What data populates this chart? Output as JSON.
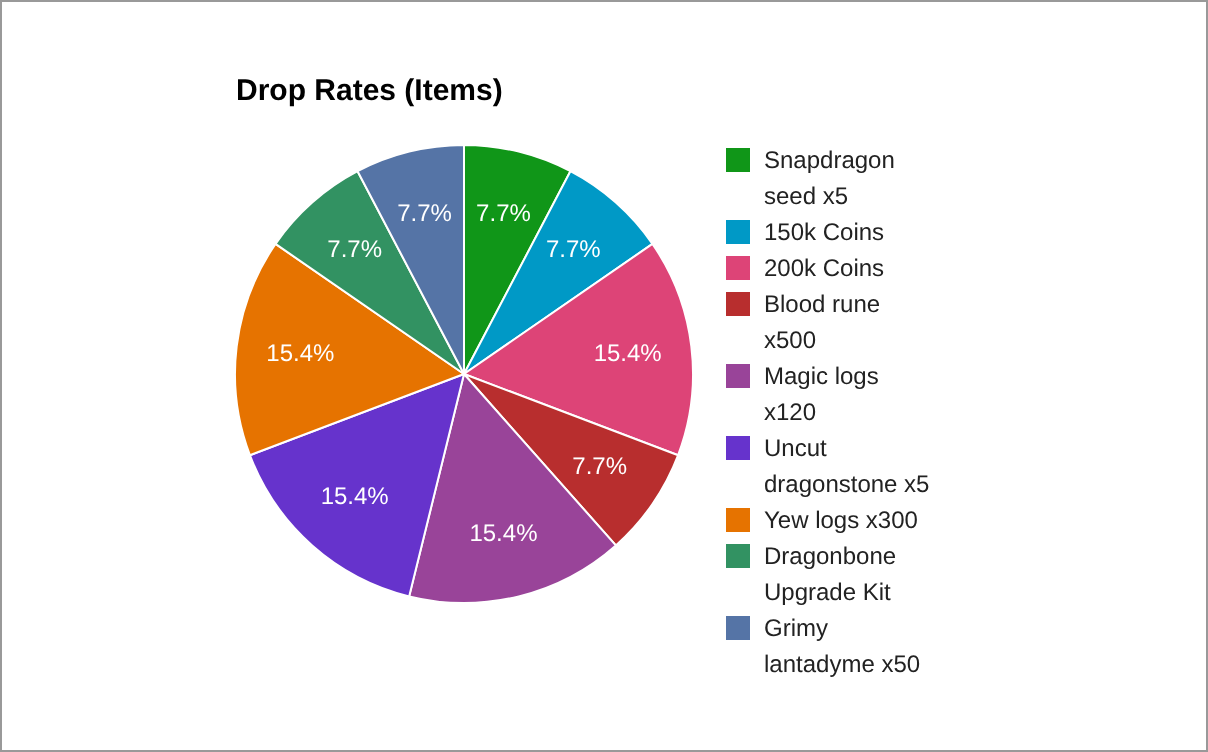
{
  "chart_data": {
    "type": "pie",
    "title": "Drop Rates (Items)",
    "categories": [
      "Snapdragon seed x5",
      "150k Coins",
      "200k Coins",
      "Blood rune x500",
      "Magic logs x120",
      "Uncut dragonstone x5",
      "Yew logs x300",
      "Dragonbone Upgrade Kit",
      "Grimy lantadyme x50"
    ],
    "values": [
      7.7,
      7.7,
      15.4,
      7.7,
      15.4,
      15.4,
      15.4,
      7.7,
      7.7
    ],
    "colors": [
      "#109618",
      "#0099c6",
      "#dd4477",
      "#b82e2e",
      "#994499",
      "#6633cc",
      "#e67300",
      "#329262",
      "#5574a6"
    ],
    "value_labels": [
      "7.7%",
      "7.7%",
      "15.4%",
      "7.7%",
      "15.4%",
      "15.4%",
      "15.4%",
      "7.7%",
      "7.7%"
    ],
    "legend": "right"
  }
}
